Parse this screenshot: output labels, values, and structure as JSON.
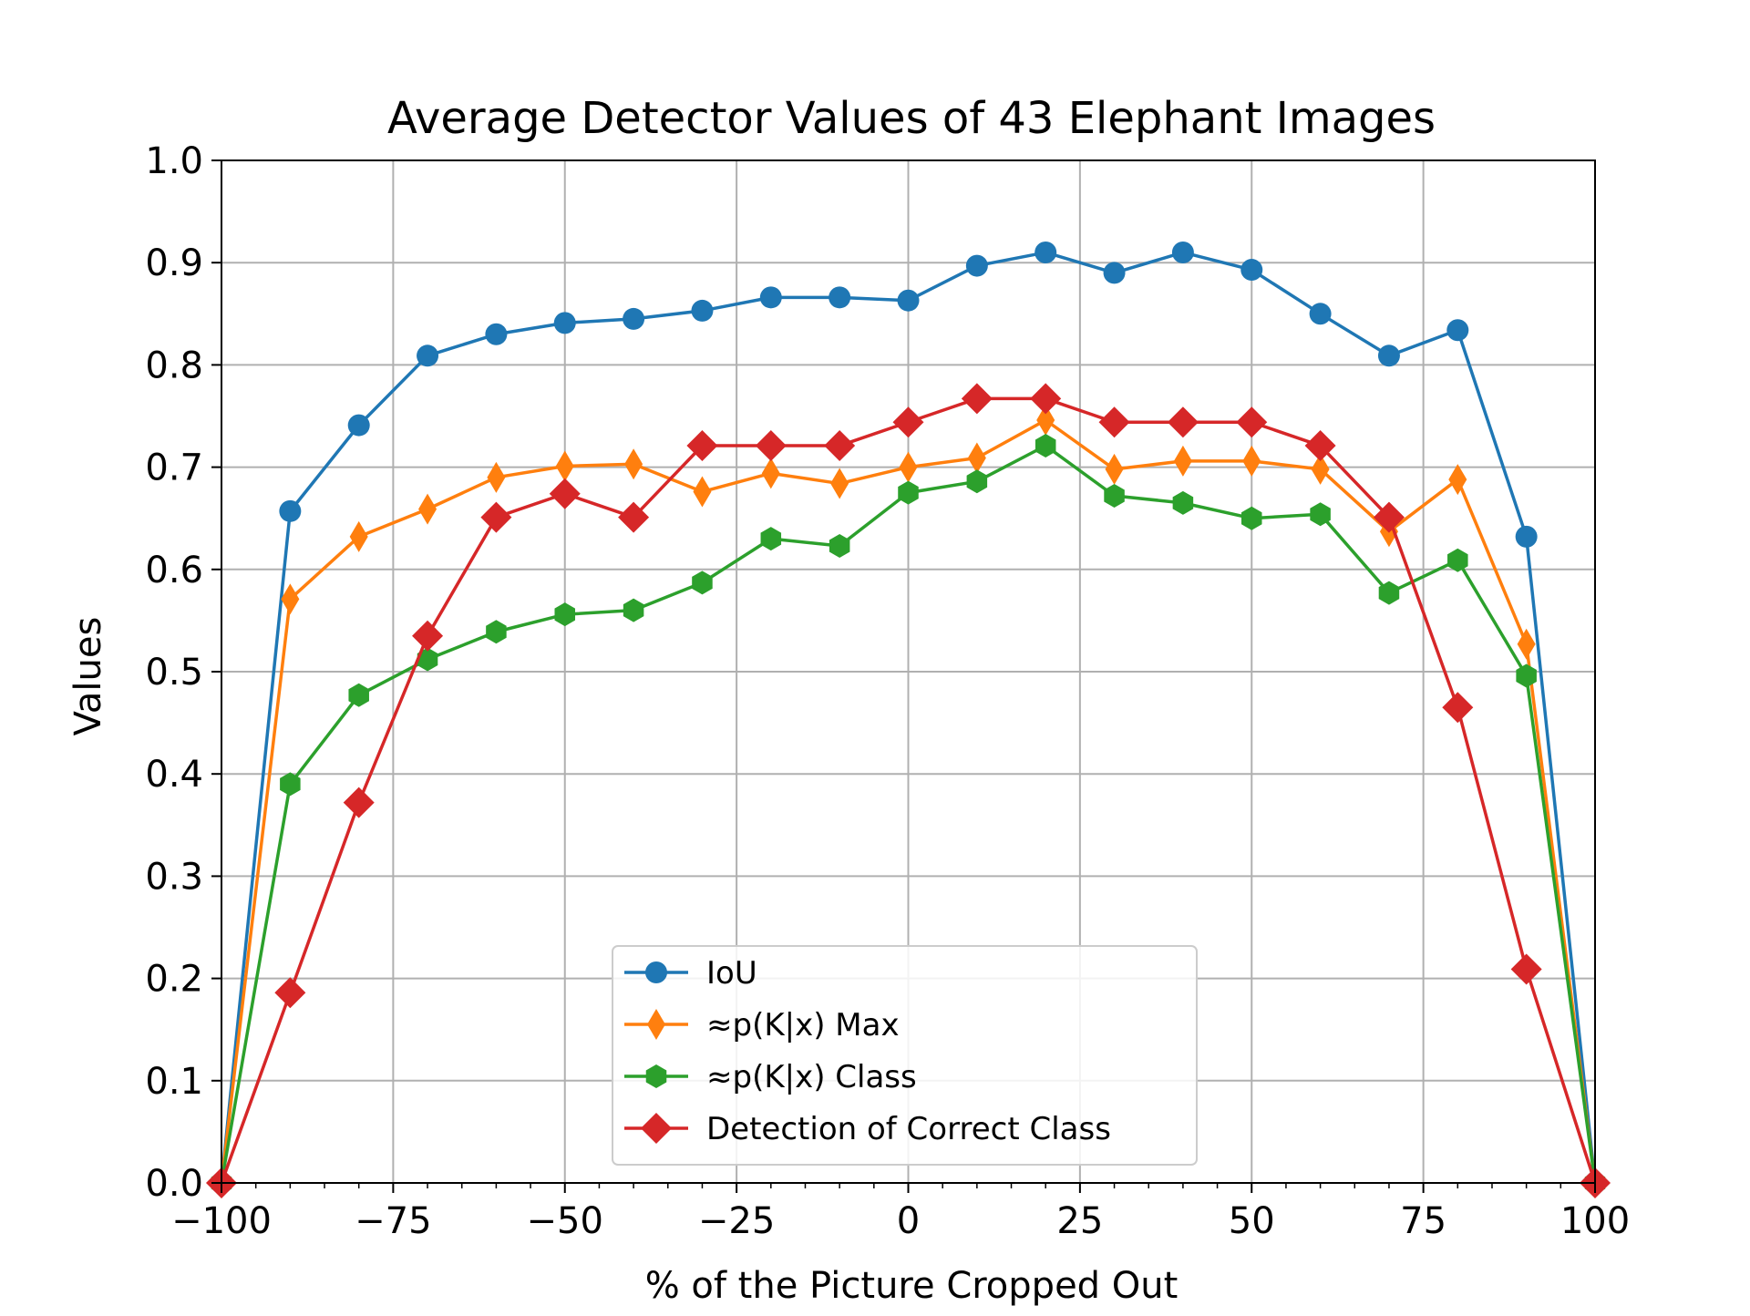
{
  "chart_data": {
    "type": "line",
    "title": "Average Detector Values of 43 Elephant Images",
    "xlabel": "% of the Picture Cropped Out",
    "ylabel": "Values",
    "xlim": [
      -100,
      100
    ],
    "ylim": [
      0.0,
      1.0
    ],
    "x_ticks": [
      -100,
      -75,
      -50,
      -25,
      0,
      25,
      50,
      75,
      100
    ],
    "x_tick_labels": [
      "−100",
      "−75",
      "−50",
      "−25",
      "0",
      "25",
      "50",
      "75",
      "100"
    ],
    "y_ticks": [
      0.0,
      0.1,
      0.2,
      0.3,
      0.4,
      0.5,
      0.6,
      0.7,
      0.8,
      0.9,
      1.0
    ],
    "y_tick_labels": [
      "0.0",
      "0.1",
      "0.2",
      "0.3",
      "0.4",
      "0.5",
      "0.6",
      "0.7",
      "0.8",
      "0.9",
      "1.0"
    ],
    "grid": true,
    "legend_position": "bottom-center",
    "x": [
      -100,
      -90,
      -80,
      -70,
      -60,
      -50,
      -40,
      -30,
      -20,
      -10,
      0,
      10,
      20,
      30,
      40,
      50,
      60,
      70,
      80,
      90,
      100
    ],
    "series": [
      {
        "name": "IoU",
        "color": "#1f77b4",
        "marker": "circle",
        "values": [
          0.0,
          0.657,
          0.741,
          0.809,
          0.83,
          0.841,
          0.845,
          0.853,
          0.866,
          0.866,
          0.863,
          0.897,
          0.91,
          0.89,
          0.91,
          0.893,
          0.85,
          0.809,
          0.834,
          0.632,
          0.0
        ]
      },
      {
        "name": "≈p(K|x) Max",
        "color": "#ff7f0e",
        "marker": "thin-diamond",
        "values": [
          0.0,
          0.571,
          0.632,
          0.659,
          0.69,
          0.701,
          0.703,
          0.676,
          0.694,
          0.684,
          0.7,
          0.709,
          0.746,
          0.698,
          0.706,
          0.706,
          0.698,
          0.637,
          0.688,
          0.527,
          0.0
        ]
      },
      {
        "name": "≈p(K|x) Class",
        "color": "#2ca02c",
        "marker": "hexagon",
        "values": [
          0.0,
          0.39,
          0.477,
          0.512,
          0.539,
          0.556,
          0.56,
          0.587,
          0.63,
          0.623,
          0.675,
          0.686,
          0.721,
          0.672,
          0.665,
          0.65,
          0.654,
          0.577,
          0.609,
          0.496,
          0.0
        ]
      },
      {
        "name": "Detection of Correct Class",
        "color": "#d62728",
        "marker": "diamond",
        "values": [
          0.0,
          0.186,
          0.372,
          0.535,
          0.651,
          0.674,
          0.651,
          0.721,
          0.721,
          0.721,
          0.744,
          0.767,
          0.767,
          0.744,
          0.744,
          0.744,
          0.721,
          0.651,
          0.465,
          0.209,
          0.0
        ]
      }
    ]
  }
}
